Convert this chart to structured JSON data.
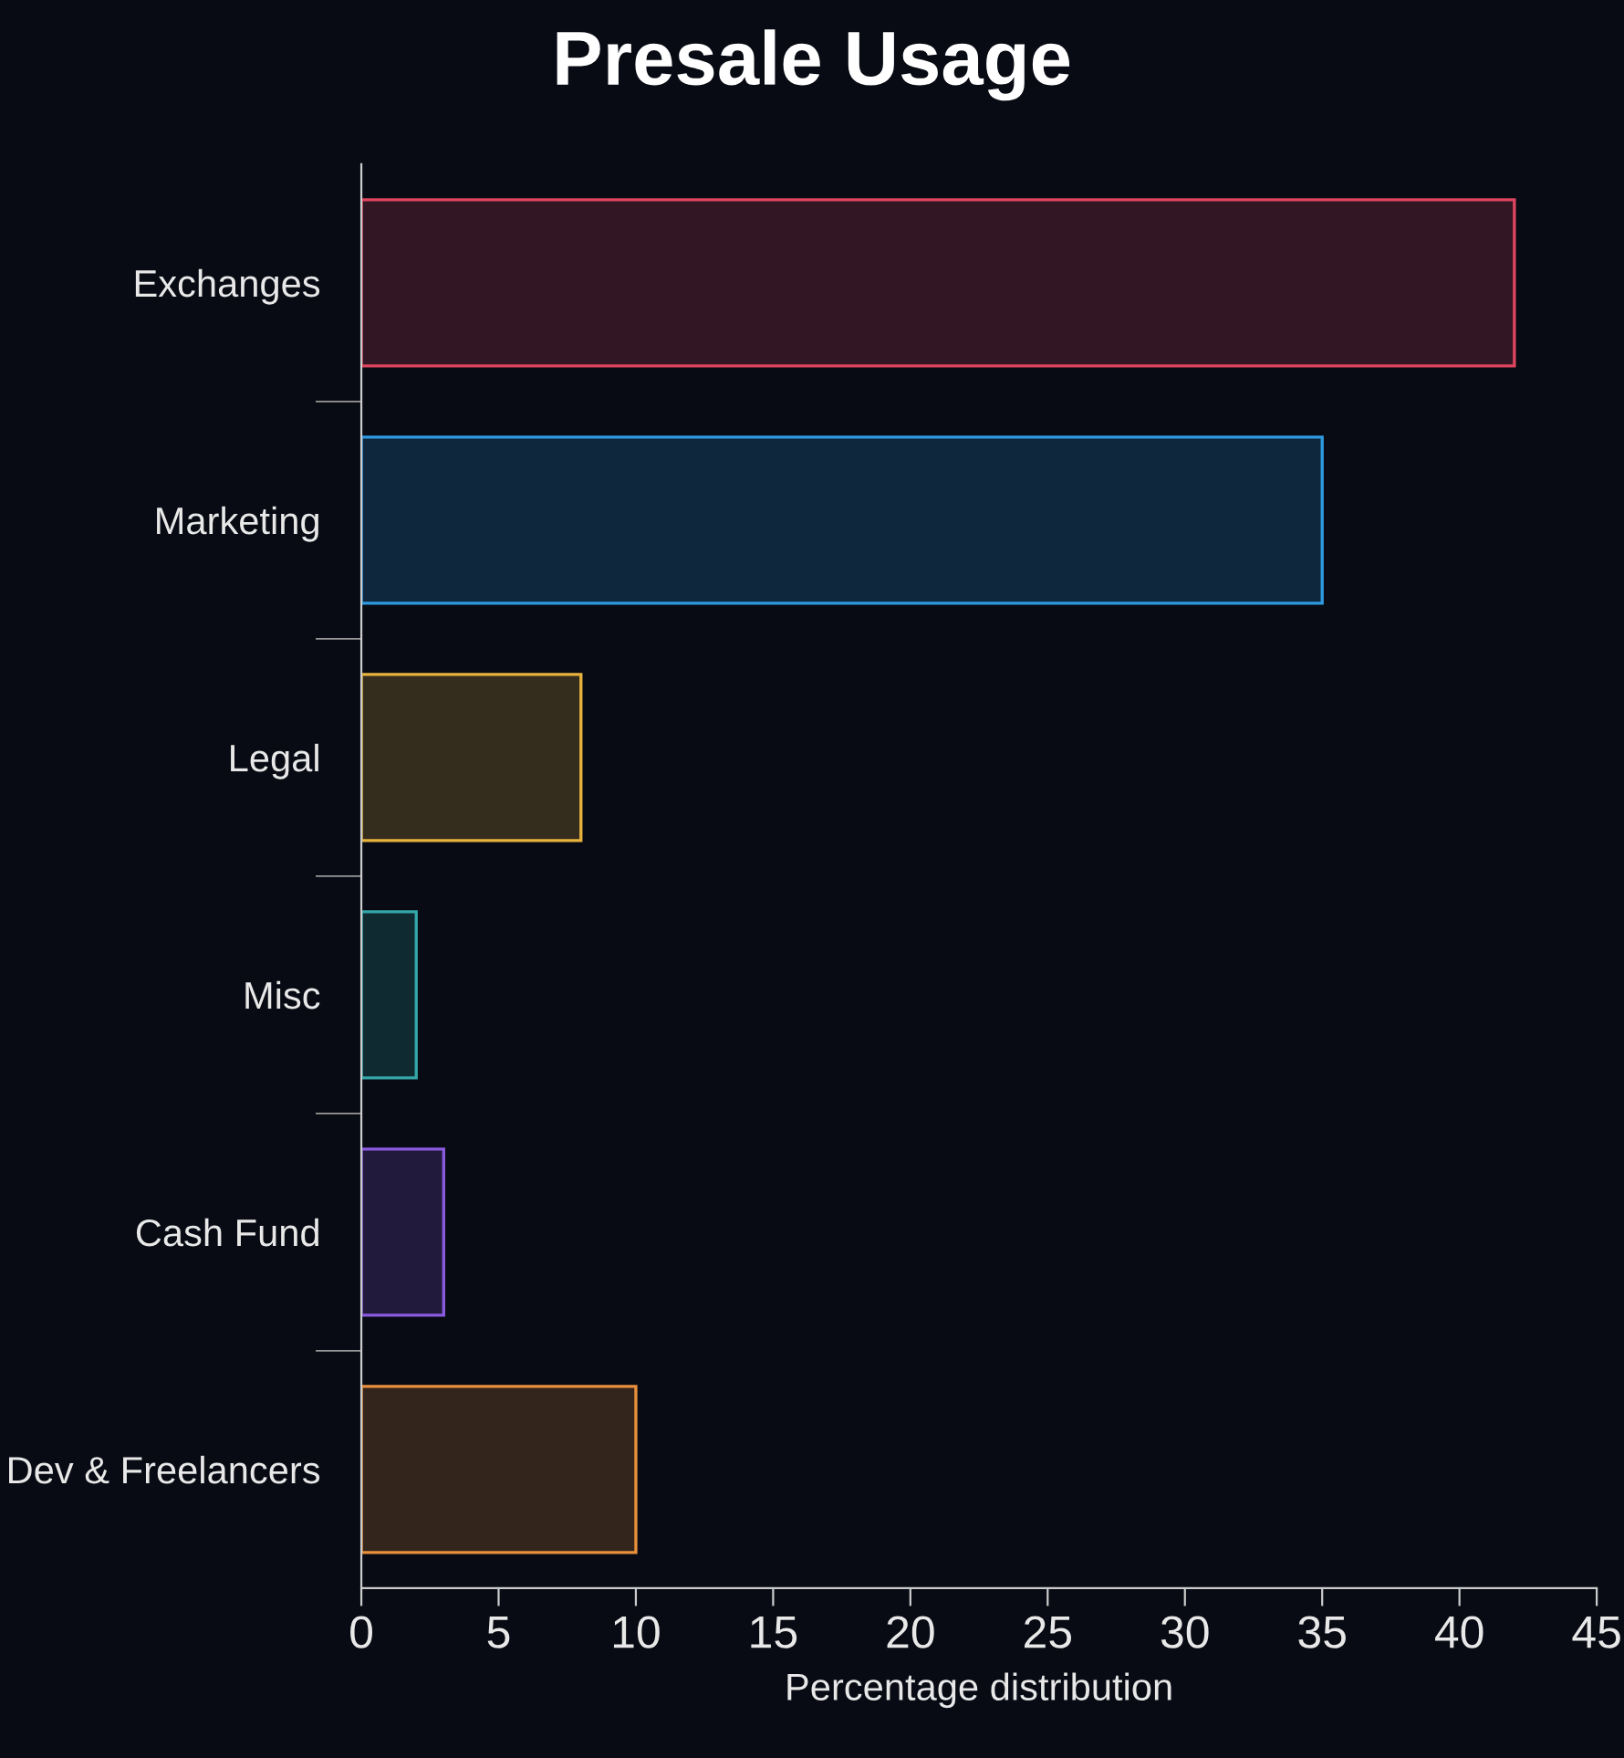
{
  "chart_data": {
    "type": "bar",
    "orientation": "horizontal",
    "title": "Presale Usage",
    "xlabel": "Percentage distribution",
    "categories": [
      "Exchanges",
      "Marketing",
      "Legal",
      "Misc",
      "Cash Fund",
      "Dev & Freelancers"
    ],
    "values": [
      42,
      35,
      8,
      2,
      3,
      10
    ],
    "colors": [
      "#e0455f",
      "#2e9ae0",
      "#e8b33c",
      "#34a8a8",
      "#8a5ae0",
      "#e8903c"
    ],
    "xlim": [
      0,
      45
    ],
    "xticks": [
      0,
      5,
      10,
      15,
      20,
      25,
      30,
      35,
      40,
      45
    ],
    "grid": false
  }
}
